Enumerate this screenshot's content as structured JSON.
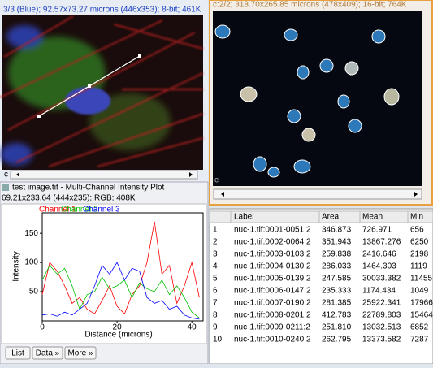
{
  "image_window": {
    "info": "3/3 (Blue); 92.57x73.27 microns (446x353); 8-bit; 461K",
    "slider": "c"
  },
  "stack_window": {
    "info": "c:2/2; 318.70x265.85 microns (478x409); 16-bit; 764K",
    "slider": "c"
  },
  "plot_window": {
    "title": "test image.tif - Multi-Channel Intensity Plot",
    "info": "69.21x233.64  (444x235); RGB; 408K",
    "plot": {
      "type": "line",
      "x_label": "Distance (microns)",
      "y_label": "Intensity",
      "x": [
        0,
        2,
        4,
        6,
        8,
        10,
        12,
        14,
        16,
        18,
        20,
        22,
        24,
        26,
        28,
        30,
        32,
        34,
        36,
        38,
        40,
        42
      ],
      "xlim": [
        0,
        43
      ],
      "ylim": [
        0,
        185
      ],
      "xticks": [
        0,
        20,
        40
      ],
      "yticks": [
        50,
        100,
        150
      ],
      "series": [
        {
          "name": "Channel 1",
          "color": "#ff0000",
          "values": [
            45,
            100,
            85,
            60,
            30,
            40,
            20,
            12,
            35,
            60,
            25,
            12,
            45,
            60,
            100,
            170,
            80,
            95,
            30,
            60,
            100,
            40
          ]
        },
        {
          "name": "Channel 2",
          "color": "#00c000",
          "values": [
            70,
            95,
            80,
            90,
            60,
            20,
            45,
            50,
            75,
            55,
            60,
            70,
            40,
            65,
            55,
            50,
            70,
            45,
            60,
            40,
            15,
            5
          ]
        },
        {
          "name": "Channel 3",
          "color": "#0000ff",
          "values": [
            10,
            12,
            8,
            15,
            10,
            20,
            30,
            60,
            95,
            80,
            100,
            70,
            90,
            85,
            40,
            30,
            35,
            20,
            25,
            10,
            5,
            3
          ]
        }
      ]
    },
    "buttons": [
      "List",
      "Data »",
      "More »"
    ]
  },
  "results_table": {
    "columns": [
      "Label",
      "Area",
      "Mean",
      "Min"
    ],
    "rows": [
      [
        "1",
        "nuc-1.tif:0001-0051:2",
        "346.873",
        "726.971",
        "656"
      ],
      [
        "2",
        "nuc-1.tif:0002-0064:2",
        "351.943",
        "13867.276",
        "6250"
      ],
      [
        "3",
        "nuc-1.tif:0003-0103:2",
        "259.838",
        "2416.646",
        "2198"
      ],
      [
        "4",
        "nuc-1.tif:0004-0130:2",
        "286.033",
        "1464.303",
        "1119"
      ],
      [
        "5",
        "nuc-1.tif:0005-0139:2",
        "247.585",
        "30033.382",
        "11455"
      ],
      [
        "6",
        "nuc-1.tif:0006-0147:2",
        "235.333",
        "1174.434",
        "1049"
      ],
      [
        "7",
        "nuc-1.tif:0007-0190:2",
        "281.385",
        "25922.341",
        "17966"
      ],
      [
        "8",
        "nuc-1.tif:0008-0201:2",
        "412.783",
        "22789.803",
        "15464"
      ],
      [
        "9",
        "nuc-1.tif:0009-0211:2",
        "251.810",
        "13032.513",
        "6852"
      ],
      [
        "10",
        "nuc-1.tif:0010-0240:2",
        "262.795",
        "13373.582",
        "7287"
      ]
    ]
  }
}
